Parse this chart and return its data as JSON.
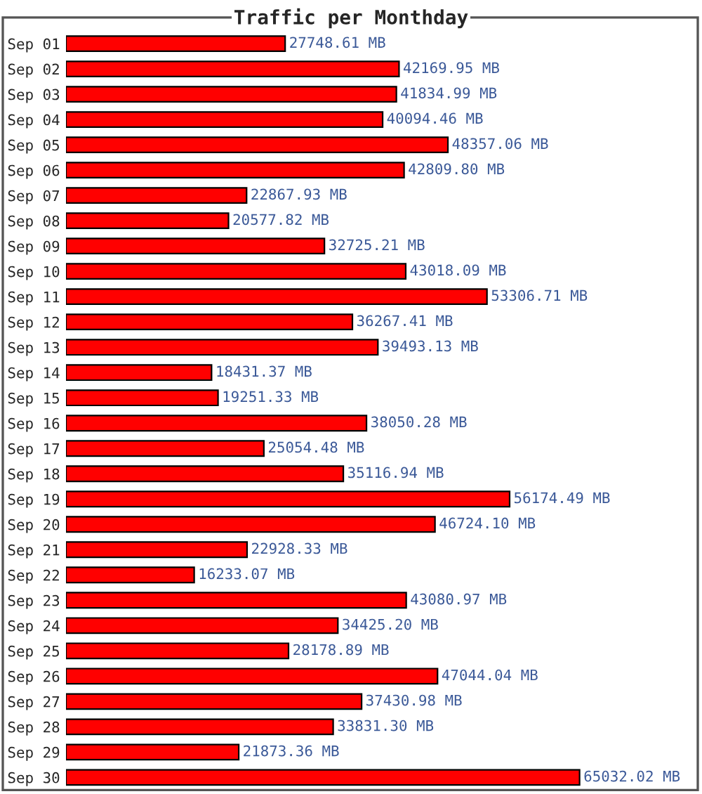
{
  "chart_data": {
    "type": "bar",
    "orientation": "horizontal",
    "title": "Traffic per Monthday",
    "categories": [
      "Sep 01",
      "Sep 02",
      "Sep 03",
      "Sep 04",
      "Sep 05",
      "Sep 06",
      "Sep 07",
      "Sep 08",
      "Sep 09",
      "Sep 10",
      "Sep 11",
      "Sep 12",
      "Sep 13",
      "Sep 14",
      "Sep 15",
      "Sep 16",
      "Sep 17",
      "Sep 18",
      "Sep 19",
      "Sep 20",
      "Sep 21",
      "Sep 22",
      "Sep 23",
      "Sep 24",
      "Sep 25",
      "Sep 26",
      "Sep 27",
      "Sep 28",
      "Sep 29",
      "Sep 30"
    ],
    "values": [
      27748.61,
      42169.95,
      41834.99,
      40094.46,
      48357.06,
      42809.8,
      22867.93,
      20577.82,
      32725.21,
      43018.09,
      53306.71,
      36267.41,
      39493.13,
      18431.37,
      19251.33,
      38050.28,
      25054.48,
      35116.94,
      56174.49,
      46724.1,
      22928.33,
      16233.07,
      43080.97,
      34425.2,
      28178.89,
      47044.04,
      37430.98,
      33831.3,
      21873.36,
      65032.02
    ],
    "value_labels": [
      "27748.61 MB",
      "42169.95 MB",
      "41834.99 MB",
      "40094.46 MB",
      "48357.06 MB",
      "42809.80 MB",
      "22867.93 MB",
      "20577.82 MB",
      "32725.21 MB",
      "43018.09 MB",
      "53306.71 MB",
      "36267.41 MB",
      "39493.13 MB",
      "18431.37 MB",
      "19251.33 MB",
      "38050.28 MB",
      "25054.48 MB",
      "35116.94 MB",
      "56174.49 MB",
      "46724.10 MB",
      "22928.33 MB",
      "16233.07 MB",
      "43080.97 MB",
      "34425.20 MB",
      "28178.89 MB",
      "47044.04 MB",
      "37430.98 MB",
      "33831.30 MB",
      "21873.36 MB",
      "65032.02 MB"
    ],
    "color": "#ff0000",
    "xlim": [
      0,
      80000
    ],
    "tick_labels": "y",
    "grid": false,
    "legend": false
  }
}
